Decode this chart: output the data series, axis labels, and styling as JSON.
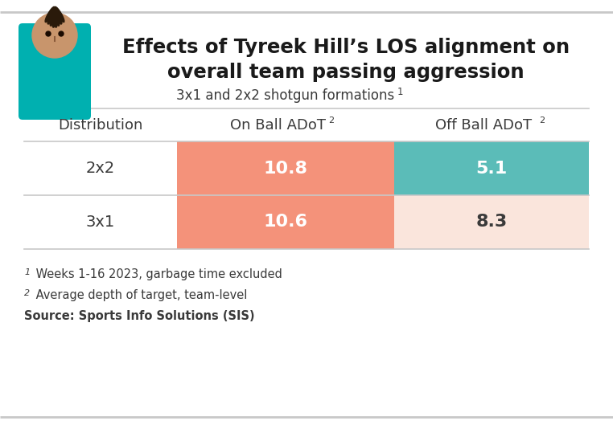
{
  "title_line1": "Effects of Tyreek Hill’s LOS alignment on",
  "title_line2": "overall team passing aggression",
  "subtitle": "3x1 and 2x2 shotgun formations",
  "subtitle_superscript": "1",
  "col_header0": "Distribution",
  "col_header1": "On Ball ADoT",
  "col_header2": "Off Ball ADoT",
  "row1_label": "2x2",
  "row1_on": "10.8",
  "row1_off": "5.1",
  "row2_label": "3x1",
  "row2_on": "10.6",
  "row2_off": "8.3",
  "on_ball_bg": "#F4927A",
  "off_ball_2x2_bg": "#5BBCB8",
  "off_ball_3x1_bg": "#FAE5DC",
  "on_ball_text_color": "#FFFFFF",
  "off_ball_2x2_text_color": "#FFFFFF",
  "off_ball_3x1_text_color": "#3a3a3a",
  "label_text_color": "#3a3a3a",
  "header_text_color": "#3a3a3a",
  "bg_color": "#FFFFFF",
  "footnote1": " Weeks 1-16 2023, garbage time excluded",
  "footnote2": " Average depth of target, team-level",
  "footnote3": "Source: Sports Info Solutions (SIS)",
  "title_color": "#1a1a1a",
  "divider_color": "#C8C8C8",
  "top_bar_color": "#C8C8C8",
  "bottom_bar_color": "#C8C8C8"
}
